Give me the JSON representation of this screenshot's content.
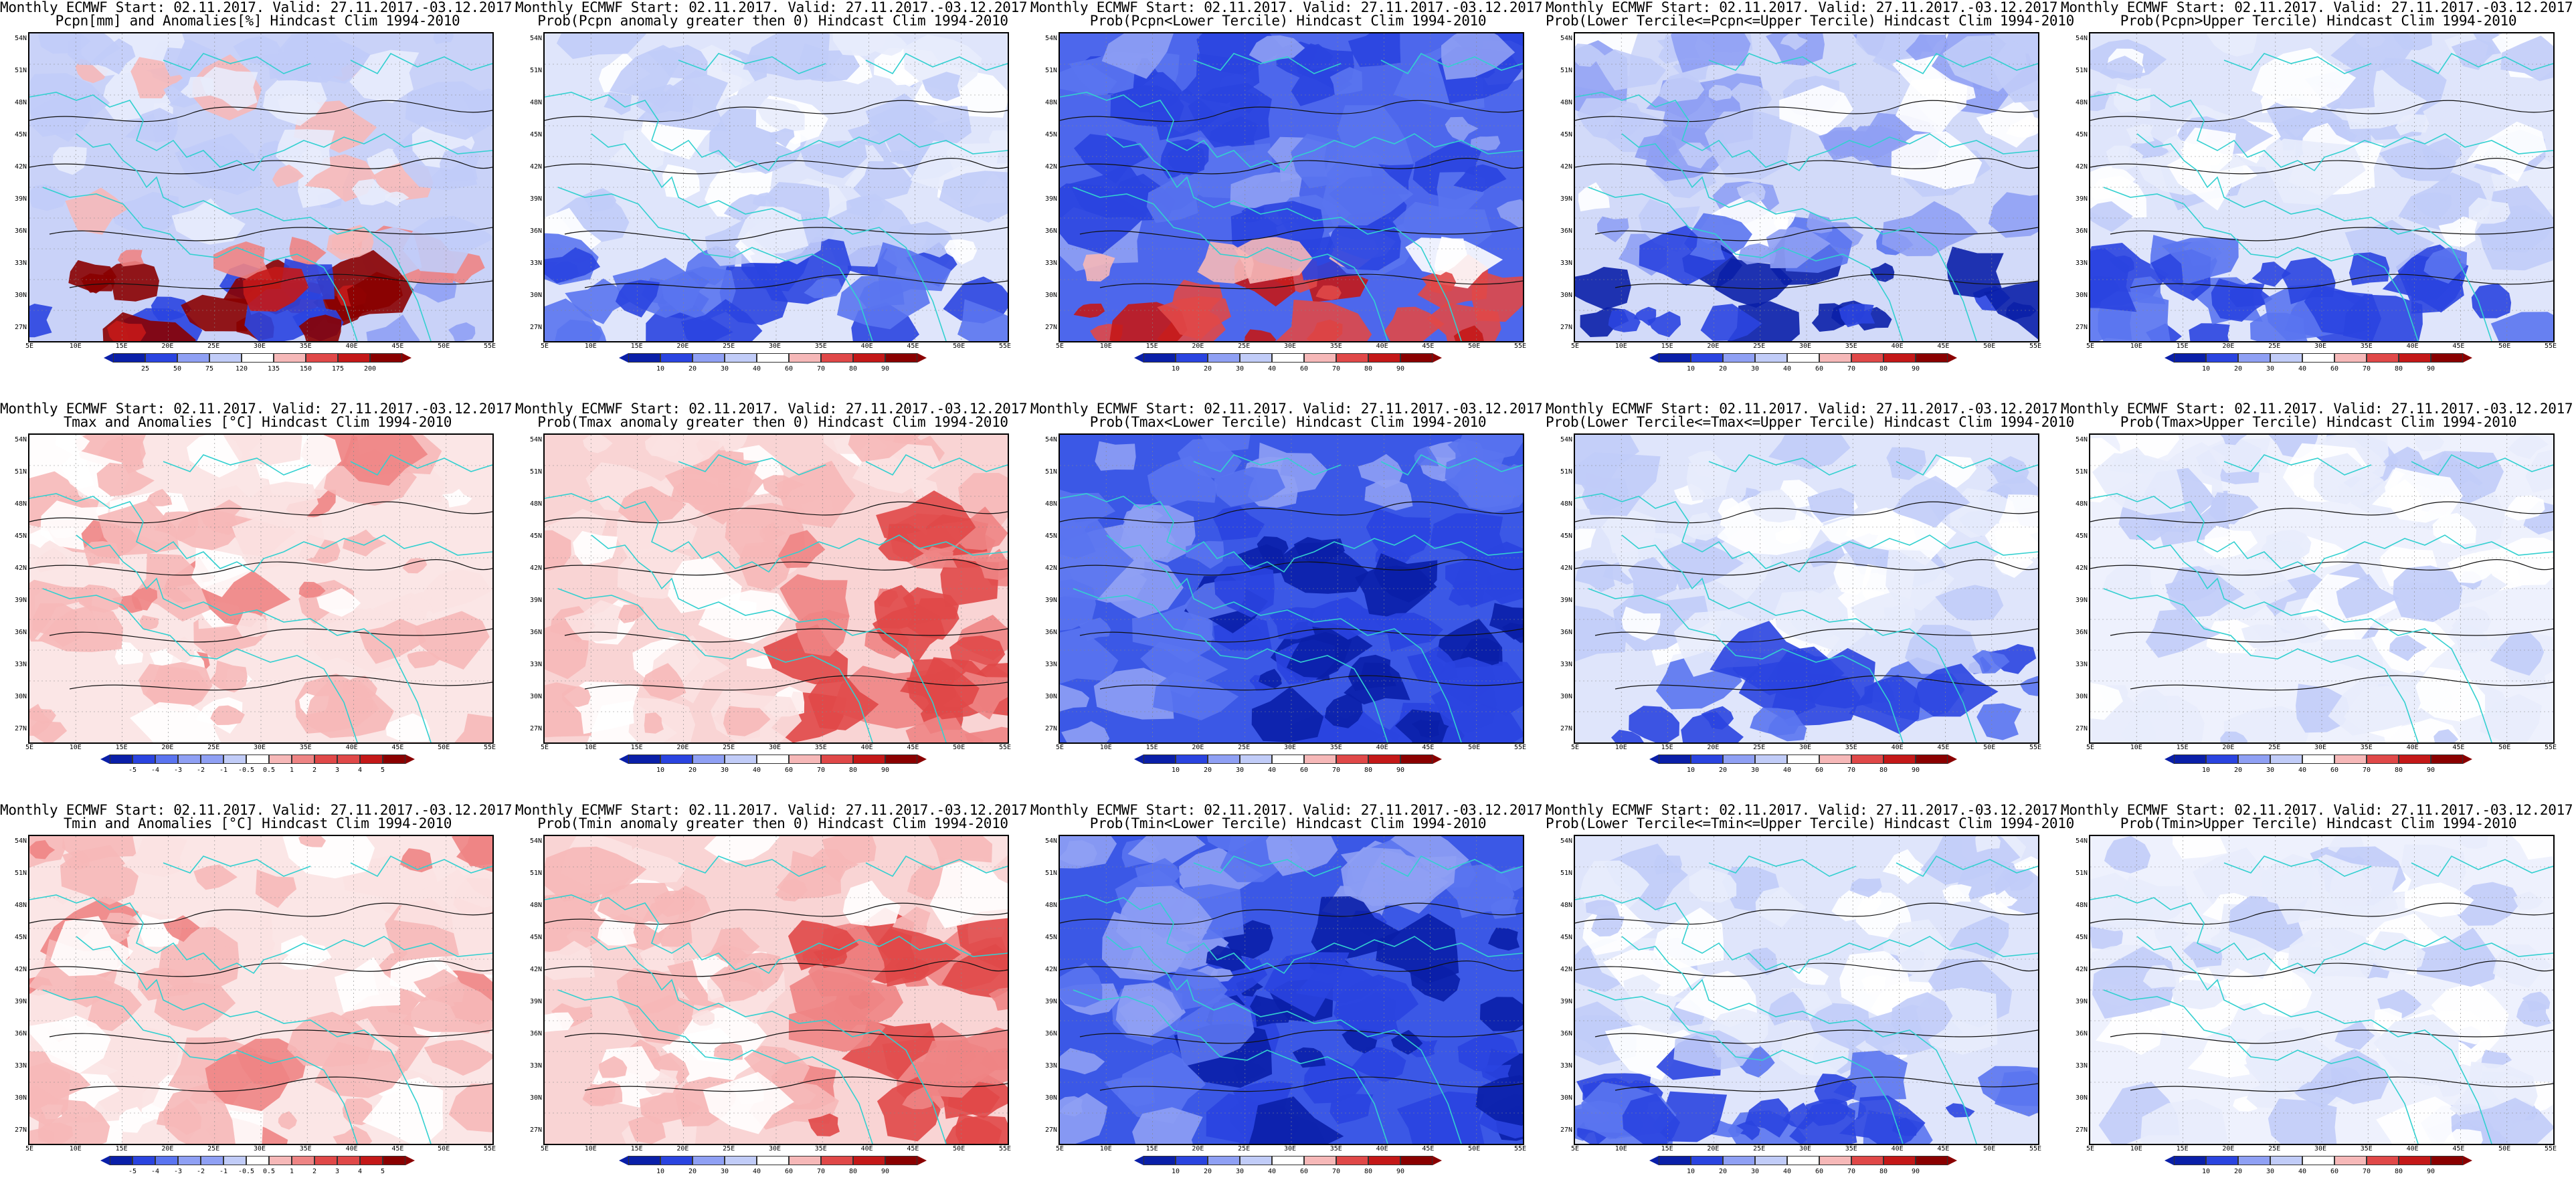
{
  "title_prefix": "Monthly ECMWF Start: 02.11.2017. Valid: 27.11.2017.-03.12.2017.",
  "lat_labels": [
    "54N",
    "51N",
    "48N",
    "45N",
    "42N",
    "39N",
    "36N",
    "33N",
    "30N",
    "27N"
  ],
  "lon_labels": [
    "5E",
    "10E",
    "15E",
    "20E",
    "25E",
    "30E",
    "35E",
    "40E",
    "45E",
    "50E",
    "55E"
  ],
  "colors": {
    "blue_scale": [
      "#0a1fa8",
      "#2a44e0",
      "#5a74f0",
      "#8fa0f4",
      "#c1ccf8",
      "#e8ecfc"
    ],
    "red_scale": [
      "#fbe2e2",
      "#f6b8b8",
      "#ee8484",
      "#e04848",
      "#c41818",
      "#8a0000"
    ],
    "land_border": "#33d0d0",
    "contour": "#111111"
  },
  "panels": [
    {
      "id": "pcpn-anom",
      "line2": "Pcpn[mm] and Anomalies[%] Hindcast Clim 1994-2010",
      "scale": "anom",
      "labels": [
        "25",
        "50",
        "75",
        "120",
        "135",
        "150",
        "175",
        "200"
      ],
      "tint": "mixed-pcpn"
    },
    {
      "id": "pcpn-prob-gt0",
      "line2": "Prob(Pcpn anomaly greater then 0) Hindcast Clim 1994-2010",
      "scale": "prob",
      "labels": [
        "10",
        "20",
        "30",
        "40",
        "60",
        "70",
        "80",
        "90"
      ],
      "tint": "blue-light"
    },
    {
      "id": "pcpn-prob-lower",
      "line2": "Prob(Pcpn<Lower Tercile) Hindcast Clim 1994-2010",
      "scale": "prob",
      "labels": [
        "10",
        "20",
        "30",
        "40",
        "60",
        "70",
        "80",
        "90"
      ],
      "tint": "blue-red-south"
    },
    {
      "id": "pcpn-prob-middle",
      "line2": "Prob(Lower Tercile<=Pcpn<=Upper Tercile) Hindcast Clim 1994-2010",
      "scale": "prob",
      "labels": [
        "10",
        "20",
        "30",
        "40",
        "60",
        "70",
        "80",
        "90"
      ],
      "tint": "blue-deep-south"
    },
    {
      "id": "pcpn-prob-upper",
      "line2": "Prob(Pcpn>Upper Tercile) Hindcast Clim 1994-2010",
      "scale": "prob",
      "labels": [
        "10",
        "20",
        "30",
        "40",
        "60",
        "70",
        "80",
        "90"
      ],
      "tint": "blue-light"
    },
    {
      "id": "tmax-anom",
      "line2": "Tmax and Anomalies [°C] Hindcast Clim 1994-2010",
      "scale": "anom",
      "labels": [
        "-5",
        "-4",
        "-3",
        "-2",
        "-1",
        "-0.5",
        "0.5",
        "1",
        "2",
        "3",
        "4",
        "5"
      ],
      "tint": "red-light"
    },
    {
      "id": "tmax-prob-gt0",
      "line2": "Prob(Tmax anomaly greater then 0) Hindcast Clim 1994-2010",
      "scale": "prob",
      "labels": [
        "10",
        "20",
        "30",
        "40",
        "60",
        "70",
        "80",
        "90"
      ],
      "tint": "red-medium"
    },
    {
      "id": "tmax-prob-lower",
      "line2": "Prob(Tmax<Lower Tercile) Hindcast Clim 1994-2010",
      "scale": "prob",
      "labels": [
        "10",
        "20",
        "30",
        "40",
        "60",
        "70",
        "80",
        "90"
      ],
      "tint": "blue-strong"
    },
    {
      "id": "tmax-prob-middle",
      "line2": "Prob(Lower Tercile<=Tmax<=Upper Tercile) Hindcast Clim 1994-2010",
      "scale": "prob",
      "labels": [
        "10",
        "20",
        "30",
        "40",
        "60",
        "70",
        "80",
        "90"
      ],
      "tint": "blue-light"
    },
    {
      "id": "tmax-prob-upper",
      "line2": "Prob(Tmax>Upper Tercile) Hindcast Clim 1994-2010",
      "scale": "prob",
      "labels": [
        "10",
        "20",
        "30",
        "40",
        "60",
        "70",
        "80",
        "90"
      ],
      "tint": "blue-pale"
    },
    {
      "id": "tmin-anom",
      "line2": "Tmin and Anomalies [°C] Hindcast Clim 1994-2010",
      "scale": "anom",
      "labels": [
        "-5",
        "-4",
        "-3",
        "-2",
        "-1",
        "-0.5",
        "0.5",
        "1",
        "2",
        "3",
        "4",
        "5"
      ],
      "tint": "red-light"
    },
    {
      "id": "tmin-prob-gt0",
      "line2": "Prob(Tmin anomaly greater then 0) Hindcast Clim 1994-2010",
      "scale": "prob",
      "labels": [
        "10",
        "20",
        "30",
        "40",
        "60",
        "70",
        "80",
        "90"
      ],
      "tint": "red-medium"
    },
    {
      "id": "tmin-prob-lower",
      "line2": "Prob(Tmin<Lower Tercile) Hindcast Clim 1994-2010",
      "scale": "prob",
      "labels": [
        "10",
        "20",
        "30",
        "40",
        "60",
        "70",
        "80",
        "90"
      ],
      "tint": "blue-strong"
    },
    {
      "id": "tmin-prob-middle",
      "line2": "Prob(Lower Tercile<=Tmin<=Upper Tercile) Hindcast Clim 1994-2010",
      "scale": "prob",
      "labels": [
        "10",
        "20",
        "30",
        "40",
        "60",
        "70",
        "80",
        "90"
      ],
      "tint": "blue-light"
    },
    {
      "id": "tmin-prob-upper",
      "line2": "Prob(Tmin>Upper Tercile) Hindcast Clim 1994-2010",
      "scale": "prob",
      "labels": [
        "10",
        "20",
        "30",
        "40",
        "60",
        "70",
        "80",
        "90"
      ],
      "tint": "blue-pale"
    }
  ]
}
